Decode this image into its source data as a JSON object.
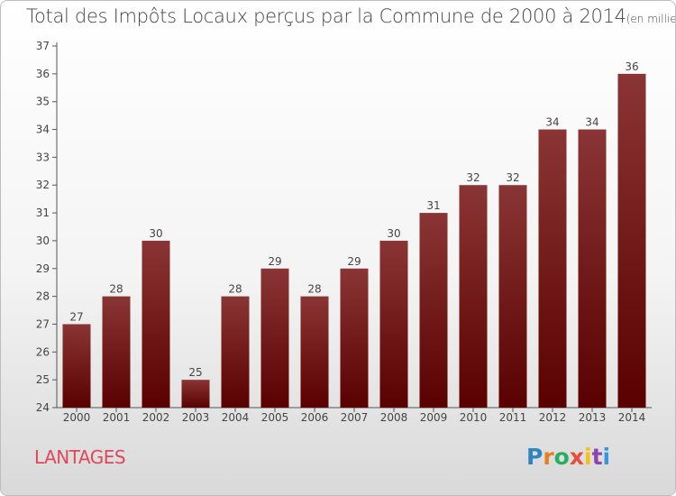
{
  "header": {
    "title": "Total des Impôts Locaux perçus par la Commune de 2000 à 2014",
    "unit": "(en milliers d'€)"
  },
  "footer": {
    "commune": "LANTAGES",
    "logo_text": "Proxiti"
  },
  "colors": {
    "bar_top": "#8a3535",
    "bar_bottom": "#5a0000",
    "commune_text": "#e0485a",
    "logo_letters": [
      "#2e86c1",
      "#e67e22",
      "#27ae60",
      "#e74c3c",
      "#f1c40f",
      "#8e44ad",
      "#3498db"
    ]
  },
  "chart_data": {
    "type": "bar",
    "categories": [
      "2000",
      "2001",
      "2002",
      "2003",
      "2004",
      "2005",
      "2006",
      "2007",
      "2008",
      "2009",
      "2010",
      "2011",
      "2012",
      "2013",
      "2014"
    ],
    "values": [
      27,
      28,
      30,
      25,
      28,
      29,
      28,
      29,
      30,
      31,
      32,
      32,
      34,
      34,
      36
    ],
    "ylim": [
      24,
      37
    ],
    "yticks": [
      24,
      25,
      26,
      27,
      28,
      29,
      30,
      31,
      32,
      33,
      34,
      35,
      36,
      37
    ],
    "grid": false
  }
}
